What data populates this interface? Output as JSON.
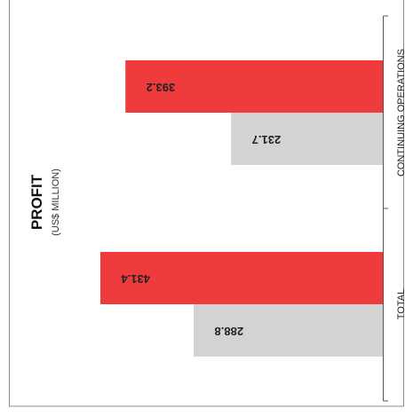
{
  "chart_data": {
    "type": "bar",
    "orientation": "rotated-90-clockwise",
    "title": "PROFIT",
    "subtitle": "(US$ MILLION)",
    "categories": [
      "CONTINUING OPERATIONS",
      "TOTAL"
    ],
    "series": [
      {
        "values": [
          393.2,
          431.4
        ],
        "color": "#ef3b3b"
      },
      {
        "values": [
          231.7,
          288.8
        ],
        "color": "#d2d3d2"
      }
    ],
    "value_labels": [
      [
        "393.2",
        "431.4"
      ],
      [
        "231.7",
        "288.8"
      ]
    ],
    "ylim": [
      0,
      450
    ],
    "grid": false,
    "legend": "none"
  }
}
